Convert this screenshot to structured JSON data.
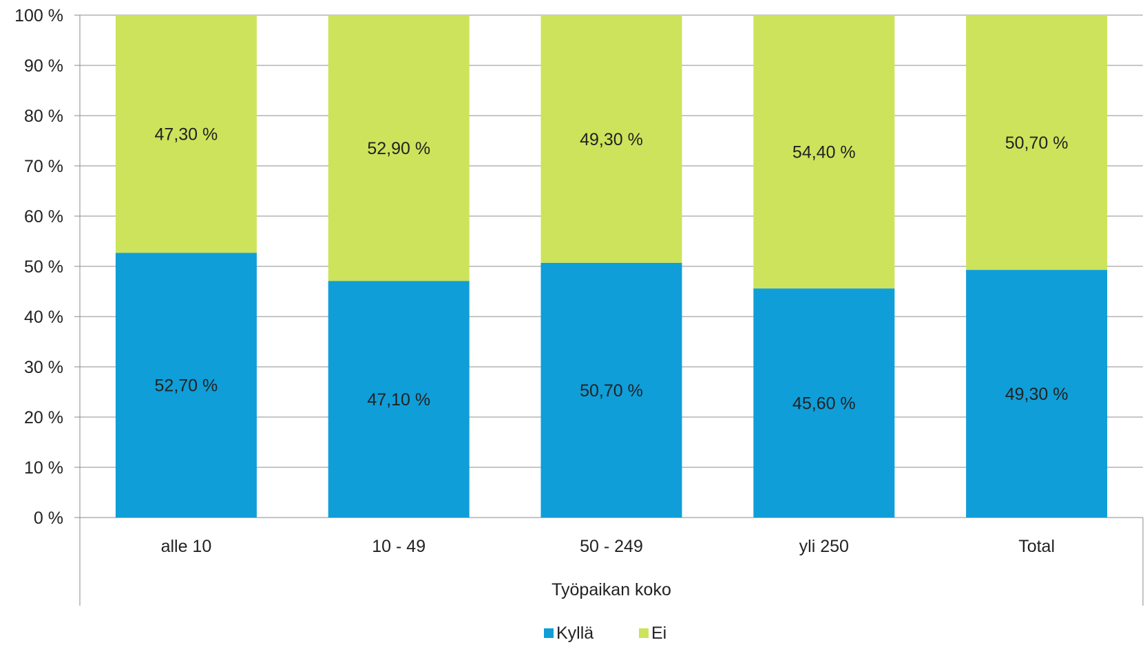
{
  "chart_data": {
    "type": "bar",
    "stacked": true,
    "categories": [
      "alle 10",
      "10 - 49",
      "50 - 249",
      "yli 250",
      "Total"
    ],
    "series": [
      {
        "name": "Kyllä",
        "color": "#0f9ed8",
        "values": [
          52.7,
          47.1,
          50.7,
          45.6,
          49.3
        ],
        "labels": [
          "52,70 %",
          "47,10 %",
          "50,70 %",
          "45,60 %",
          "49,30 %"
        ]
      },
      {
        "name": "Ei",
        "color": "#cde35b",
        "values": [
          47.3,
          52.9,
          49.3,
          54.4,
          50.7
        ],
        "labels": [
          "47,30 %",
          "52,90 %",
          "49,30 %",
          "54,40 %",
          "50,70 %"
        ]
      }
    ],
    "xlabel": "Työpaikan koko",
    "ylabel": "",
    "ylim": [
      0,
      100
    ],
    "yticks": [
      0,
      10,
      20,
      30,
      40,
      50,
      60,
      70,
      80,
      90,
      100
    ],
    "ytick_labels": [
      "0 %",
      "10 %",
      "20 %",
      "30 %",
      "40 %",
      "50 %",
      "60 %",
      "70 %",
      "80 %",
      "90 %",
      "100 %"
    ],
    "grid": true,
    "legend_position": "bottom"
  }
}
